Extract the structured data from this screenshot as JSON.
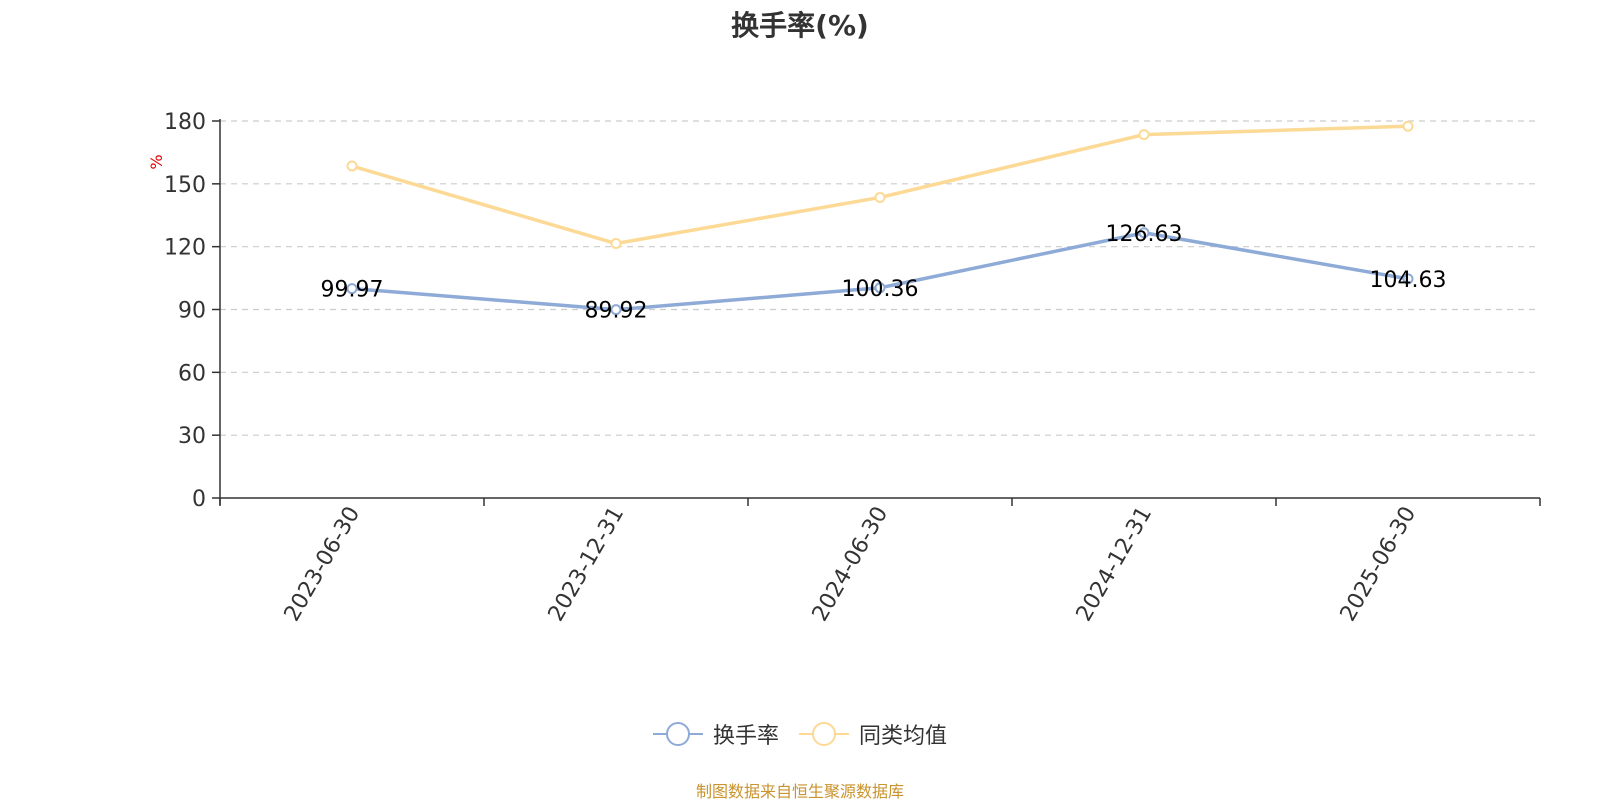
{
  "chart_data": {
    "type": "line",
    "title": "换手率(%)",
    "ylabel": "%",
    "categories": [
      "2023-06-30",
      "2023-12-31",
      "2024-06-30",
      "2024-12-31",
      "2025-06-30"
    ],
    "ylim": [
      0,
      180
    ],
    "yticks": [
      0,
      30,
      60,
      90,
      120,
      150,
      180
    ],
    "grid": true,
    "legend_position": "bottom",
    "series": [
      {
        "name": "换手率",
        "values": [
          99.97,
          89.92,
          100.36,
          126.63,
          104.63
        ],
        "color": "#8eaad6",
        "data_labels": true
      },
      {
        "name": "同类均值",
        "values": [
          158.5,
          121.5,
          143.5,
          173.5,
          177.5
        ],
        "color": "#fcd995",
        "data_labels": false
      }
    ]
  },
  "unit_color": "#e00000",
  "source_note": "制图数据来自恒生聚源数据库"
}
